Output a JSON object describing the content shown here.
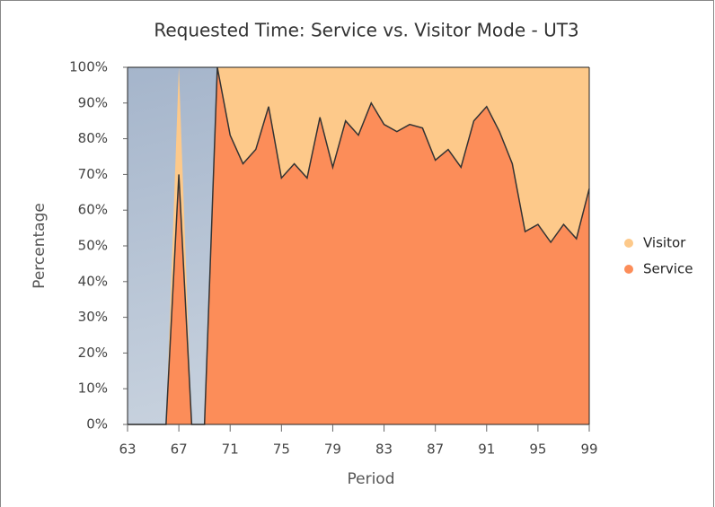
{
  "chart_data": {
    "type": "area",
    "stacked": true,
    "title": "Requested Time: Service vs. Visitor Mode - UT3",
    "x_label": "Period",
    "y_label": "Percentage",
    "x": [
      63,
      64,
      65,
      66,
      67,
      68,
      69,
      70,
      71,
      72,
      73,
      74,
      75,
      76,
      77,
      78,
      79,
      80,
      81,
      82,
      83,
      84,
      85,
      86,
      87,
      88,
      89,
      90,
      91,
      92,
      93,
      94,
      95,
      96,
      97,
      98,
      99
    ],
    "series": [
      {
        "name": "Service",
        "color": "#fc8d59",
        "values": [
          0,
          0,
          0,
          0,
          70,
          0,
          0,
          100,
          81,
          73,
          77,
          89,
          69,
          73,
          69,
          86,
          72,
          85,
          81,
          90,
          84,
          82,
          84,
          83,
          74,
          77,
          72,
          85,
          89,
          82,
          73,
          54,
          56,
          51,
          56,
          52,
          66
        ]
      },
      {
        "name": "Visitor",
        "color": "#fdc98a",
        "values": [
          0,
          0,
          0,
          0,
          30,
          0,
          0,
          0,
          19,
          27,
          23,
          11,
          31,
          27,
          31,
          14,
          28,
          15,
          19,
          10,
          16,
          18,
          16,
          17,
          26,
          23,
          28,
          15,
          11,
          18,
          27,
          46,
          44,
          49,
          44,
          48,
          34
        ]
      }
    ],
    "xlim": [
      63,
      99
    ],
    "xticks": [
      63,
      67,
      71,
      75,
      79,
      83,
      87,
      91,
      95,
      99
    ],
    "ylim": [
      0,
      100
    ],
    "yticks": [
      {
        "value": 0,
        "label": "0%"
      },
      {
        "value": 10,
        "label": "10%"
      },
      {
        "value": 20,
        "label": "20%"
      },
      {
        "value": 30,
        "label": "30%"
      },
      {
        "value": 40,
        "label": "40%"
      },
      {
        "value": 50,
        "label": "50%"
      },
      {
        "value": 60,
        "label": "60%"
      },
      {
        "value": 70,
        "label": "70%"
      },
      {
        "value": 80,
        "label": "80%"
      },
      {
        "value": 90,
        "label": "90%"
      },
      {
        "value": 100,
        "label": "100%"
      }
    ],
    "legend": "right"
  }
}
